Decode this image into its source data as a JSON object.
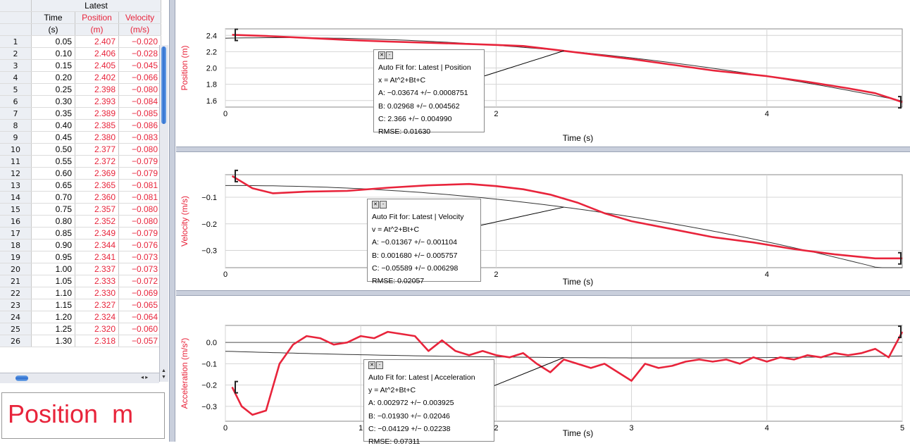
{
  "table": {
    "group_header": "Latest",
    "columns": [
      {
        "name": "Time",
        "unit": "(s)",
        "color": "#000000"
      },
      {
        "name": "Position",
        "unit": "(m)",
        "color": "#e8243b"
      },
      {
        "name": "Velocity",
        "unit": "(m/s)",
        "color": "#e8243b"
      }
    ],
    "rows": [
      [
        "1",
        "0.05",
        "2.407",
        "−0.020"
      ],
      [
        "2",
        "0.10",
        "2.406",
        "−0.028"
      ],
      [
        "3",
        "0.15",
        "2.405",
        "−0.045"
      ],
      [
        "4",
        "0.20",
        "2.402",
        "−0.066"
      ],
      [
        "5",
        "0.25",
        "2.398",
        "−0.080"
      ],
      [
        "6",
        "0.30",
        "2.393",
        "−0.084"
      ],
      [
        "7",
        "0.35",
        "2.389",
        "−0.085"
      ],
      [
        "8",
        "0.40",
        "2.385",
        "−0.086"
      ],
      [
        "9",
        "0.45",
        "2.380",
        "−0.083"
      ],
      [
        "10",
        "0.50",
        "2.377",
        "−0.080"
      ],
      [
        "11",
        "0.55",
        "2.372",
        "−0.079"
      ],
      [
        "12",
        "0.60",
        "2.369",
        "−0.079"
      ],
      [
        "13",
        "0.65",
        "2.365",
        "−0.081"
      ],
      [
        "14",
        "0.70",
        "2.360",
        "−0.081"
      ],
      [
        "15",
        "0.75",
        "2.357",
        "−0.080"
      ],
      [
        "16",
        "0.80",
        "2.352",
        "−0.080"
      ],
      [
        "17",
        "0.85",
        "2.349",
        "−0.079"
      ],
      [
        "18",
        "0.90",
        "2.344",
        "−0.076"
      ],
      [
        "19",
        "0.95",
        "2.341",
        "−0.073"
      ],
      [
        "20",
        "1.00",
        "2.337",
        "−0.073"
      ],
      [
        "21",
        "1.05",
        "2.333",
        "−0.072"
      ],
      [
        "22",
        "1.10",
        "2.330",
        "−0.069"
      ],
      [
        "23",
        "1.15",
        "2.327",
        "−0.065"
      ],
      [
        "24",
        "1.20",
        "2.324",
        "−0.064"
      ],
      [
        "25",
        "1.25",
        "2.320",
        "−0.060"
      ],
      [
        "26",
        "1.30",
        "2.318",
        "−0.057"
      ]
    ]
  },
  "meter": {
    "label": "Position",
    "unit": "m"
  },
  "colors": {
    "series": "#e8243b",
    "fit": "#333333",
    "accent": "#2f6fd0"
  },
  "graphs": [
    {
      "id": "position",
      "ylabel": "Position (m)",
      "xlabel": "Time (s)",
      "xlim": [
        0,
        5
      ],
      "ylim": [
        1.52,
        2.48
      ],
      "xticks": [
        0,
        2,
        4
      ],
      "yticks": [
        {
          "v": 2.4,
          "t": "2.4"
        },
        {
          "v": 2.2,
          "t": "2.2"
        },
        {
          "v": 2.0,
          "t": "2.0"
        },
        {
          "v": 1.8,
          "t": "1.8"
        },
        {
          "v": 1.6,
          "t": "1.6"
        }
      ],
      "series": [
        [
          0.05,
          2.407
        ],
        [
          0.3,
          2.393
        ],
        [
          0.6,
          2.369
        ],
        [
          0.9,
          2.344
        ],
        [
          1.2,
          2.324
        ],
        [
          1.5,
          2.31
        ],
        [
          1.8,
          2.295
        ],
        [
          2.0,
          2.283
        ],
        [
          2.2,
          2.27
        ],
        [
          2.5,
          2.21
        ],
        [
          2.8,
          2.15
        ],
        [
          3.0,
          2.11
        ],
        [
          3.3,
          2.04
        ],
        [
          3.6,
          1.97
        ],
        [
          4.0,
          1.9
        ],
        [
          4.3,
          1.83
        ],
        [
          4.6,
          1.75
        ],
        [
          4.8,
          1.69
        ],
        [
          4.95,
          1.61
        ],
        [
          5.0,
          1.58
        ]
      ],
      "fit": {
        "A": -0.03674,
        "B": 0.02968,
        "C": 2.366
      },
      "fit_box": {
        "title": "Auto Fit for: Latest | Position",
        "equation": "x = At^2+Bt+C",
        "A": "A: −0.03674 +/− 0.0008751",
        "B": "B: 0.02968 +/− 0.004562",
        "C": "C: 2.366 +/− 0.004990",
        "rmse": "RMSE: 0.01630"
      },
      "leader_t": 2.5
    },
    {
      "id": "velocity",
      "ylabel": "Velocity (m/s)",
      "xlabel": "Time (s)",
      "xlim": [
        0,
        5
      ],
      "ylim": [
        -0.365,
        -0.015
      ],
      "xticks": [
        0,
        2,
        4
      ],
      "yticks": [
        {
          "v": -0.1,
          "t": "−0.1"
        },
        {
          "v": -0.2,
          "t": "−0.2"
        },
        {
          "v": -0.3,
          "t": "−0.3"
        }
      ],
      "series": [
        [
          0.05,
          -0.02
        ],
        [
          0.2,
          -0.066
        ],
        [
          0.35,
          -0.085
        ],
        [
          0.6,
          -0.079
        ],
        [
          0.9,
          -0.076
        ],
        [
          1.2,
          -0.064
        ],
        [
          1.5,
          -0.055
        ],
        [
          1.8,
          -0.05
        ],
        [
          2.0,
          -0.058
        ],
        [
          2.2,
          -0.07
        ],
        [
          2.4,
          -0.09
        ],
        [
          2.6,
          -0.12
        ],
        [
          2.8,
          -0.16
        ],
        [
          3.0,
          -0.19
        ],
        [
          3.3,
          -0.22
        ],
        [
          3.6,
          -0.25
        ],
        [
          3.9,
          -0.27
        ],
        [
          4.2,
          -0.295
        ],
        [
          4.5,
          -0.315
        ],
        [
          4.8,
          -0.33
        ],
        [
          5.0,
          -0.33
        ]
      ],
      "fit": {
        "A": -0.01367,
        "B": 0.00168,
        "C": -0.05589
      },
      "fit_box": {
        "title": "Auto Fit for: Latest | Velocity",
        "equation": "v = At^2+Bt+C",
        "A": "A: −0.01367 +/− 0.001104",
        "B": "B: 0.001680 +/− 0.005757",
        "C": "C: −0.05589 +/− 0.006298",
        "rmse": "RMSE: 0.02057"
      },
      "leader_t": 2.5
    },
    {
      "id": "acceleration",
      "ylabel": "Acceleration (m/s²)",
      "xlabel": "Time (s)",
      "xlim": [
        0,
        5
      ],
      "ylim": [
        -0.37,
        0.08
      ],
      "xticks": [
        0,
        1,
        2,
        3,
        4,
        5
      ],
      "yticks": [
        {
          "v": 0.0,
          "t": "0.0"
        },
        {
          "v": -0.1,
          "t": "−0.1"
        },
        {
          "v": -0.2,
          "t": "−0.2"
        },
        {
          "v": -0.3,
          "t": "−0.3"
        }
      ],
      "series": [
        [
          0.05,
          -0.21
        ],
        [
          0.12,
          -0.3
        ],
        [
          0.2,
          -0.34
        ],
        [
          0.3,
          -0.32
        ],
        [
          0.4,
          -0.1
        ],
        [
          0.5,
          -0.01
        ],
        [
          0.6,
          0.03
        ],
        [
          0.7,
          0.02
        ],
        [
          0.8,
          -0.01
        ],
        [
          0.9,
          0.0
        ],
        [
          1.0,
          0.03
        ],
        [
          1.1,
          0.02
        ],
        [
          1.2,
          0.05
        ],
        [
          1.3,
          0.04
        ],
        [
          1.4,
          0.03
        ],
        [
          1.5,
          -0.04
        ],
        [
          1.6,
          0.01
        ],
        [
          1.7,
          -0.04
        ],
        [
          1.8,
          -0.06
        ],
        [
          1.9,
          -0.04
        ],
        [
          2.0,
          -0.06
        ],
        [
          2.1,
          -0.07
        ],
        [
          2.2,
          -0.05
        ],
        [
          2.3,
          -0.1
        ],
        [
          2.4,
          -0.14
        ],
        [
          2.5,
          -0.08
        ],
        [
          2.6,
          -0.1
        ],
        [
          2.7,
          -0.12
        ],
        [
          2.8,
          -0.1
        ],
        [
          2.9,
          -0.14
        ],
        [
          3.0,
          -0.18
        ],
        [
          3.1,
          -0.1
        ],
        [
          3.2,
          -0.12
        ],
        [
          3.3,
          -0.11
        ],
        [
          3.4,
          -0.09
        ],
        [
          3.5,
          -0.08
        ],
        [
          3.6,
          -0.09
        ],
        [
          3.7,
          -0.08
        ],
        [
          3.8,
          -0.1
        ],
        [
          3.9,
          -0.07
        ],
        [
          4.0,
          -0.09
        ],
        [
          4.1,
          -0.07
        ],
        [
          4.2,
          -0.08
        ],
        [
          4.3,
          -0.06
        ],
        [
          4.4,
          -0.07
        ],
        [
          4.5,
          -0.05
        ],
        [
          4.6,
          -0.06
        ],
        [
          4.7,
          -0.05
        ],
        [
          4.8,
          -0.03
        ],
        [
          4.9,
          -0.07
        ],
        [
          5.0,
          0.05
        ]
      ],
      "fit": {
        "A": 0.002972,
        "B": -0.0193,
        "C": -0.04129
      },
      "fit_box": {
        "title": "Auto Fit for: Latest | Acceleration",
        "equation": "y = At^2+Bt+C",
        "A": "A: 0.002972 +/− 0.003925",
        "B": "B: −0.01930 +/− 0.02046",
        "C": "C: −0.04129 +/− 0.02238",
        "rmse": "RMSE: 0.07311"
      },
      "leader_t": 2.5
    }
  ]
}
